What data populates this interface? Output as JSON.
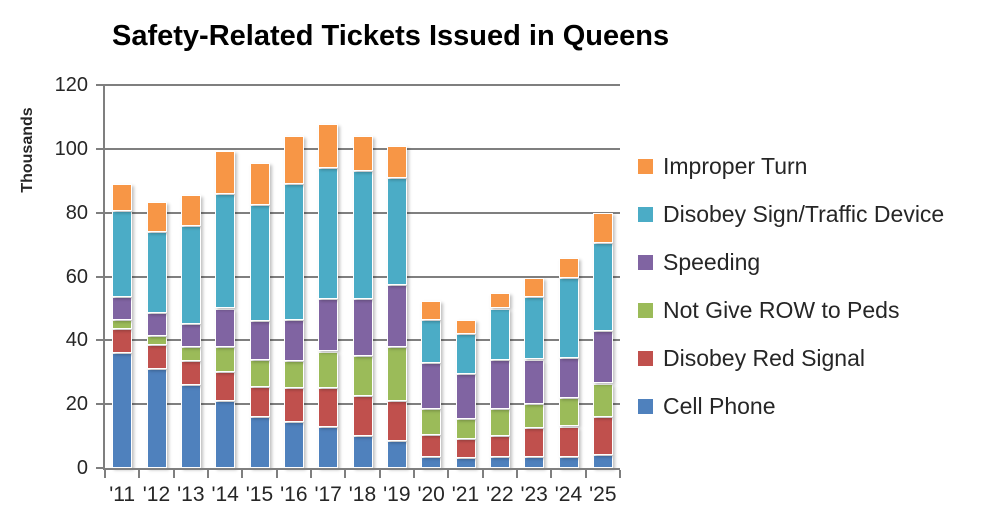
{
  "chart_data": {
    "type": "bar",
    "stacked": true,
    "title": "Safety-Related Tickets Issued in Queens",
    "ylabel": "Thousands",
    "ylim": [
      0,
      120
    ],
    "yticks": [
      0,
      20,
      40,
      60,
      80,
      100,
      120
    ],
    "grid": true,
    "legend_position": "right",
    "categories": [
      "'11",
      "'12",
      "'13",
      "'14",
      "'15",
      "'16",
      "'17",
      "'18",
      "'19",
      "'20",
      "'21",
      "'22",
      "'23",
      "'24",
      "'25"
    ],
    "series": [
      {
        "name": "Cell Phone",
        "color": "#4F81BD",
        "values": [
          36,
          31,
          26,
          21,
          16,
          14.5,
          13,
          10,
          8.5,
          3.5,
          3,
          3.5,
          3.5,
          3.5,
          4
        ]
      },
      {
        "name": "Disobey Red Signal",
        "color": "#C0504D",
        "values": [
          7.5,
          7.5,
          7.5,
          9,
          9.5,
          10.5,
          12,
          12.5,
          12.5,
          7,
          6,
          6.5,
          9,
          9.5,
          12
        ]
      },
      {
        "name": "Not Give ROW to Peds",
        "color": "#9BBB59",
        "values": [
          3,
          3,
          4.5,
          8,
          8.5,
          8.5,
          11.5,
          12.5,
          17,
          8,
          6.5,
          8.5,
          7.5,
          9,
          10.5
        ]
      },
      {
        "name": "Speeding",
        "color": "#8064A2",
        "values": [
          7,
          7,
          7,
          12,
          12,
          13,
          16.5,
          18,
          19.5,
          14.5,
          14,
          15.5,
          14,
          12.5,
          16.5
        ]
      },
      {
        "name": "Disobey Sign/Traffic Device",
        "color": "#4BACC6",
        "values": [
          27,
          25.5,
          31,
          36,
          36.5,
          42.5,
          41,
          40,
          33.5,
          13.5,
          12.5,
          16,
          19.5,
          25,
          27.5
        ]
      },
      {
        "name": "Improper Turn",
        "color": "#F79646",
        "values": [
          8.5,
          9.5,
          9.5,
          13.5,
          13,
          15,
          14,
          11,
          10,
          6,
          4.5,
          5,
          6,
          6.5,
          9.5
        ]
      }
    ],
    "legend_order": [
      "Improper Turn",
      "Disobey Sign/Traffic Device",
      "Speeding",
      "Not Give ROW to Peds",
      "Disobey Red Signal",
      "Cell Phone"
    ]
  },
  "colors": {
    "axis": "#7F7F7F",
    "gridline": "#7F7F7F",
    "text": "#262626",
    "title_text": "#000000"
  }
}
